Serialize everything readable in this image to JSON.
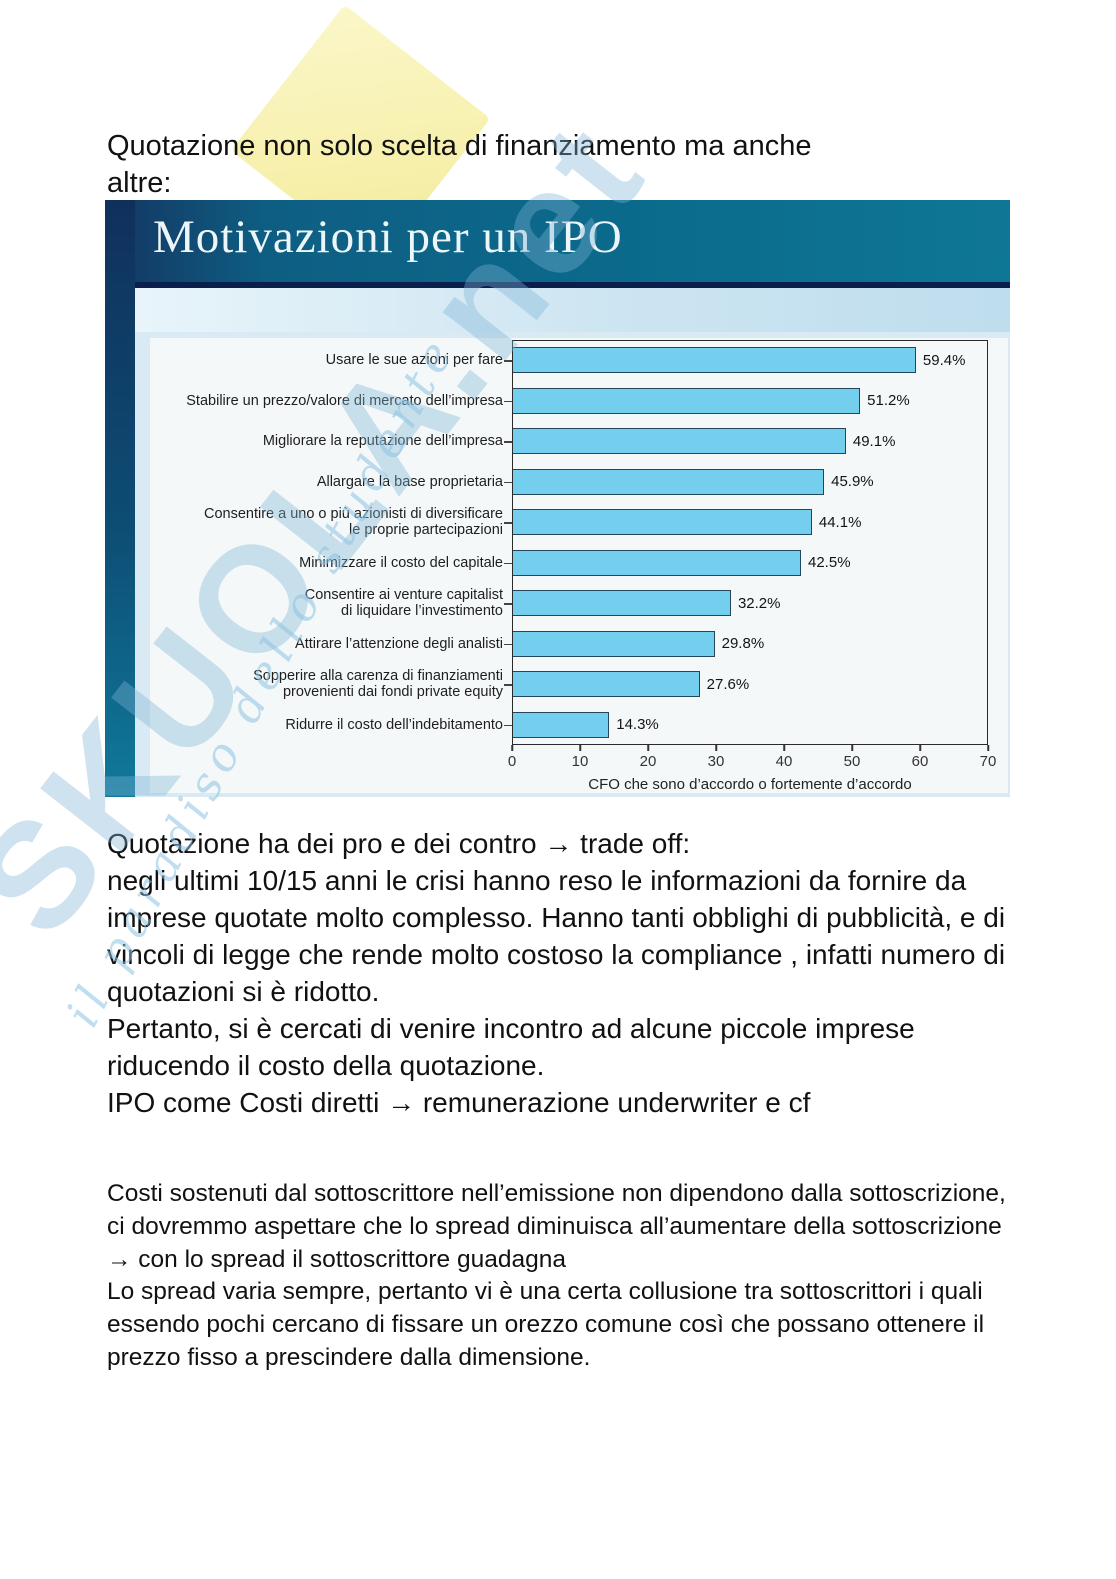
{
  "page": {
    "intro_text": "Quotazione non solo scelta di finanziamento ma anche\naltre:",
    "paragraph_large": "Quotazione ha dei pro e dei contro → trade off:\nnegli ultimi 10/15 anni le crisi hanno reso le informazioni da fornire da imprese quotate molto complesso. Hanno tanti obblighi di pubblicità, e di vincoli di legge che rende molto costoso la compliance , infatti numero di quotazioni si è ridotto.\nPertanto, si è cercati di venire incontro ad alcune piccole imprese riducendo il costo della quotazione.\nIPO come Costi diretti → remunerazione underwriter e cf",
    "paragraph_small": "Costi sostenuti dal sottoscrittore nell’emissione non dipendono dalla sottoscrizione, ci dovremmo aspettare che lo spread diminuisca all’aumentare della sottoscrizione → con lo spread il sottoscrittore guadagna\nLo spread varia sempre, pertanto vi è una certa collusione tra sottoscrittori i quali essendo pochi cercano di fissare un orezzo comune così che possano ottenere il prezzo fisso a prescindere dalla dimensione."
  },
  "slide": {
    "title": "Motivazioni per un IPO"
  },
  "watermark": {
    "brand_text": "SKUOLA.net",
    "slogan": "il paradiso dello studente"
  },
  "colors": {
    "slide_header_teal": "#0b6b8c",
    "slide_navy": "#10305c",
    "watermark_yellow": "#f8f3bb",
    "watermark_blue": "#7db2d6",
    "bar_fill": "#74cfee",
    "bar_border": "#24465c"
  },
  "chart_data": {
    "type": "bar",
    "orientation": "horizontal",
    "title": "Motivazioni per un IPO",
    "categories": [
      "Usare le sue azioni per fare",
      "Stabilire un prezzo/valore di mercato dell’impresa",
      "Migliorare la reputazione dell’impresa",
      "Allargare la base proprietaria",
      "Consentire a uno o più azionisti di diversificare\nle proprie partecipazioni",
      "Minimizzare il costo del capitale",
      "Consentire ai venture capitalist\ndi liquidare l’investimento",
      "Attirare l’attenzione degli analisti",
      "Sopperire alla carenza di finanziamenti\nprovenienti dai fondi private equity",
      "Ridurre il costo dell’indebitamento"
    ],
    "values": [
      59.4,
      51.2,
      49.1,
      45.9,
      44.1,
      42.5,
      32.2,
      29.8,
      27.6,
      14.3
    ],
    "value_labels": [
      "59.4%",
      "51.2%",
      "49.1%",
      "45.9%",
      "44.1%",
      "42.5%",
      "32.2%",
      "29.8%",
      "27.6%",
      "14.3%"
    ],
    "xlabel": "CFO che sono d’accordo o fortemente d’accordo",
    "xlim": [
      0,
      70
    ],
    "x_ticks": [
      0,
      10,
      20,
      30,
      40,
      50,
      60,
      70
    ],
    "grid": false,
    "legend": false,
    "bar_color": "#74cfee"
  }
}
